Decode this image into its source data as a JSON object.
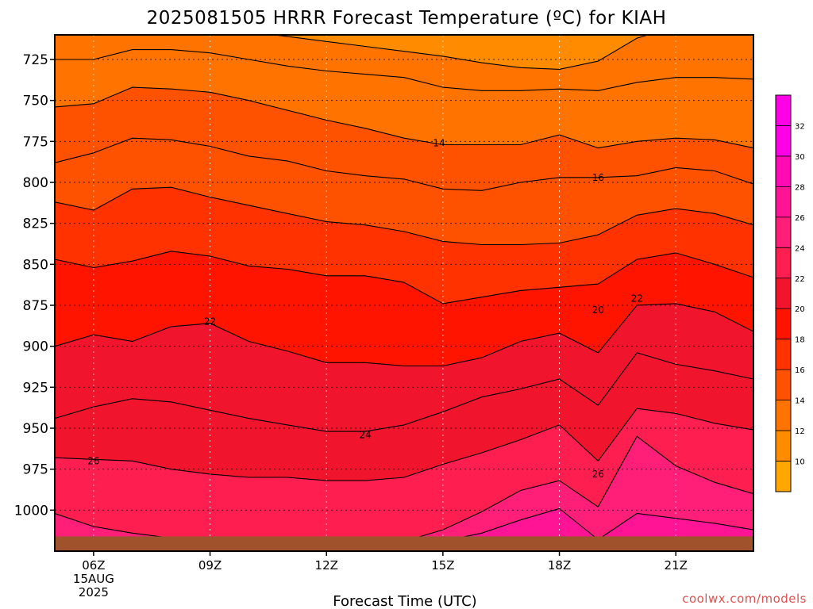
{
  "title": "2025081505 HRRR Forecast Temperature (ºC) for KIAH",
  "xlabel": "Forecast Time (UTC)",
  "credit": "coolwx.com/models",
  "colors": {
    "bands": [
      "#ffa600",
      "#ff8c00",
      "#ff7300",
      "#ff5200",
      "#ff3200",
      "#ff1400",
      "#f0142d",
      "#ff1e50",
      "#ff1e78",
      "#ff1496",
      "#ff0ab4",
      "#ff00e6"
    ],
    "contour": "#000000",
    "ground": "#a0522d"
  },
  "colorbar": {
    "ticks": [
      "10",
      "12",
      "14",
      "16",
      "18",
      "20",
      "22",
      "24",
      "26",
      "28",
      "30",
      "32"
    ]
  },
  "chart_data": {
    "type": "heatmap",
    "title": "2025081505 HRRR Forecast Temperature (ºC) for KIAH",
    "xlabel": "Forecast Time (UTC)",
    "ylabel": "",
    "x": [
      5,
      6,
      7,
      8,
      9,
      10,
      11,
      12,
      13,
      14,
      15,
      16,
      17,
      18,
      19,
      20,
      21,
      22,
      23
    ],
    "x_ticks": [
      {
        "value": 6,
        "lines": [
          "06Z",
          "15AUG",
          "2025"
        ]
      },
      {
        "value": 9,
        "lines": [
          "09Z"
        ]
      },
      {
        "value": 12,
        "lines": [
          "12Z"
        ]
      },
      {
        "value": 15,
        "lines": [
          "15Z"
        ]
      },
      {
        "value": 18,
        "lines": [
          "18Z"
        ]
      },
      {
        "value": 21,
        "lines": [
          "21Z"
        ]
      }
    ],
    "y_ticks": [
      "725",
      "750",
      "775",
      "800",
      "825",
      "850",
      "875",
      "900",
      "925",
      "950",
      "975",
      "1000"
    ],
    "y_range": [
      710,
      1025
    ],
    "x_range": [
      5,
      23
    ],
    "color_range": [
      9,
      33
    ],
    "contour_interval": 1,
    "contour_labels": [
      {
        "text": "14",
        "x": 14.9,
        "y": 776
      },
      {
        "text": "16",
        "x": 19.0,
        "y": 797
      },
      {
        "text": "20",
        "x": 19.0,
        "y": 878
      },
      {
        "text": "22",
        "x": 9.0,
        "y": 885
      },
      {
        "text": "22",
        "x": 20.0,
        "y": 871
      },
      {
        "text": "24",
        "x": 13.0,
        "y": 954
      },
      {
        "text": "26",
        "x": 6.0,
        "y": 970
      },
      {
        "text": "26",
        "x": 19.0,
        "y": 978
      }
    ],
    "contours": [
      {
        "level": 13,
        "y": [
          705,
          704,
          701,
          702,
          705,
          708,
          711,
          714,
          717,
          720,
          723,
          727,
          730,
          731,
          726,
          712,
          705,
          705,
          705
        ]
      },
      {
        "level": 14,
        "y": [
          725,
          725,
          719,
          719,
          721,
          725,
          729,
          732,
          734,
          736,
          742,
          744,
          744,
          743,
          744,
          739,
          736,
          736,
          737
        ]
      },
      {
        "level": 15,
        "y": [
          754,
          752,
          742,
          743,
          745,
          750,
          756,
          762,
          767,
          773,
          777,
          777,
          777,
          771,
          779,
          775,
          773,
          774,
          779
        ]
      },
      {
        "level": 16,
        "y": [
          788,
          782,
          773,
          774,
          778,
          784,
          787,
          793,
          796,
          798,
          804,
          805,
          800,
          797,
          797,
          796,
          791,
          793,
          801
        ]
      },
      {
        "level": 18,
        "y": [
          812,
          817,
          804,
          803,
          809,
          814,
          819,
          824,
          826,
          830,
          836,
          838,
          838,
          837,
          832,
          820,
          816,
          819,
          826
        ]
      },
      {
        "level": 20,
        "y": [
          847,
          852,
          848,
          842,
          845,
          851,
          853,
          857,
          857,
          861,
          874,
          870,
          866,
          864,
          862,
          847,
          843,
          850,
          858
        ]
      },
      {
        "level": 21,
        "y": [
          900,
          893,
          897,
          888,
          886,
          897,
          903,
          910,
          910,
          912,
          912,
          907,
          897,
          892,
          904,
          875,
          874,
          879,
          891
        ]
      },
      {
        "level": 22,
        "y": [
          944,
          937,
          932,
          934,
          939,
          944,
          948,
          952,
          952,
          948,
          940,
          931,
          926,
          920,
          936,
          904,
          911,
          915,
          920
        ]
      },
      {
        "level": 24,
        "y": [
          968,
          969,
          970,
          975,
          978,
          980,
          980,
          982,
          982,
          980,
          972,
          965,
          957,
          948,
          970,
          938,
          941,
          947,
          951
        ]
      },
      {
        "level": 26,
        "y": [
          1002,
          1010,
          1014,
          1017,
          1018,
          1020,
          1022,
          1023,
          1023,
          1019,
          1012,
          1001,
          988,
          982,
          998,
          955,
          973,
          983,
          990
        ]
      },
      {
        "level": 28,
        "y": [
          1025,
          1025,
          1025,
          1025,
          1025,
          1025,
          1025,
          1025,
          1025,
          1023,
          1019,
          1014,
          1006,
          999,
          1018,
          1002,
          1005,
          1008,
          1012
        ]
      }
    ],
    "ground": {
      "top": 1016
    }
  }
}
